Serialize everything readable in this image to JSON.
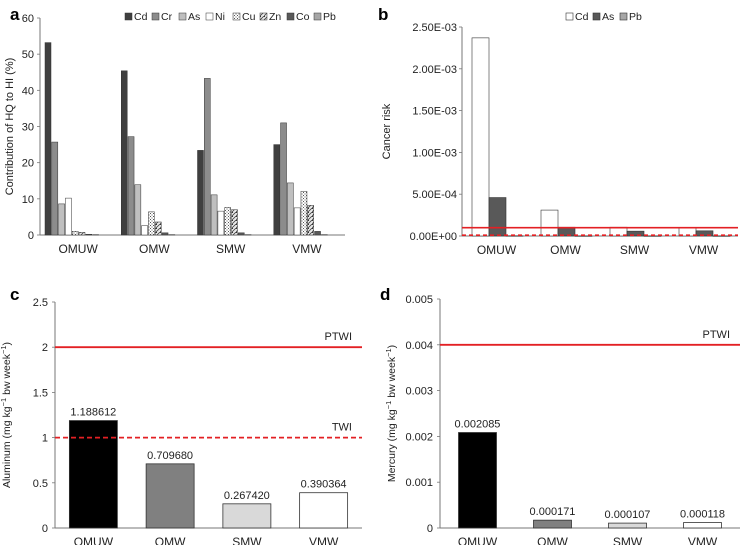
{
  "chart_data": [
    {
      "panel": "a",
      "type": "bar",
      "ylabel": "Contribution of HQ to HI (%)",
      "ylim": [
        0,
        60
      ],
      "yticks": [
        0,
        10,
        20,
        30,
        40,
        50,
        60
      ],
      "categories": [
        "OMUW",
        "OMW",
        "SMW",
        "VMW"
      ],
      "legend_position": "top",
      "series": [
        {
          "name": "Cd",
          "pattern": "cd",
          "values": [
            53.2,
            45.4,
            23.4,
            25.0
          ]
        },
        {
          "name": "Cr",
          "pattern": "cr",
          "values": [
            25.7,
            27.2,
            43.3,
            31.0
          ]
        },
        {
          "name": "As",
          "pattern": "as",
          "values": [
            8.6,
            13.9,
            11.1,
            14.4
          ]
        },
        {
          "name": "Ni",
          "pattern": "ni",
          "values": [
            10.2,
            2.6,
            6.6,
            7.5
          ]
        },
        {
          "name": "Cu",
          "pattern": "cu",
          "values": [
            1.0,
            6.4,
            7.6,
            12.1
          ]
        },
        {
          "name": "Zn",
          "pattern": "zn",
          "values": [
            0.7,
            3.6,
            7.0,
            8.2
          ]
        },
        {
          "name": "Co",
          "pattern": "co",
          "values": [
            0.2,
            0.6,
            0.6,
            1.0
          ]
        },
        {
          "name": "Pb",
          "pattern": "pb",
          "values": [
            0.1,
            0.1,
            0.1,
            0.1
          ]
        }
      ]
    },
    {
      "panel": "b",
      "type": "bar",
      "ylabel": "Cancer risk",
      "ylim": [
        0,
        0.0025
      ],
      "yticks": [
        0,
        0.0005,
        0.001,
        0.0015,
        0.002,
        0.0025
      ],
      "ytick_labels": [
        "0.00E+00",
        "5.00E-04",
        "1.00E-03",
        "1.50E-03",
        "2.00E-03",
        "2.50E-03"
      ],
      "categories": [
        "OMUW",
        "OMW",
        "SMW",
        "VMW"
      ],
      "legend_position": "top",
      "series": [
        {
          "name": "Cd",
          "pattern": "white",
          "values": [
            0.00237,
            0.00031,
            0.000105,
            9.5e-05
          ]
        },
        {
          "name": "As",
          "pattern": "dark",
          "values": [
            0.00046,
            0.000105,
            5.8e-05,
            6.2e-05
          ]
        },
        {
          "name": "Pb",
          "pattern": "light",
          "values": [
            3e-06,
            2e-06,
            2e-06,
            2e-06
          ]
        }
      ],
      "reference_lines": [
        {
          "value": 0.0001,
          "style": "solid",
          "color": "#e32024"
        },
        {
          "value": 1e-05,
          "style": "dashed",
          "color": "#e32024"
        }
      ]
    },
    {
      "panel": "c",
      "type": "bar",
      "ylabel_main": "Aluminum (mg kg",
      "ylabel_sup1": "−1",
      "ylabel_mid": " bw week",
      "ylabel_sup2": "−1",
      "ylabel_end": ")",
      "ylim": [
        0,
        2.5
      ],
      "yticks": [
        0,
        0.5,
        1,
        1.5,
        2,
        2.5
      ],
      "ytick_labels": [
        "0",
        "0.5",
        "1",
        "1.5",
        "2",
        "2.5"
      ],
      "categories": [
        "OMUW",
        "OMW",
        "SMW",
        "VMW"
      ],
      "values": [
        1.188612,
        0.70968,
        0.26742,
        0.390364
      ],
      "value_labels": [
        "1.188612",
        "0.709680",
        "0.267420",
        "0.390364"
      ],
      "bar_colors": [
        "#000000",
        "#808080",
        "#d9d9d9",
        "#ffffff"
      ],
      "reference_lines": [
        {
          "label": "PTWI",
          "value": 2,
          "style": "solid",
          "color": "#e32024"
        },
        {
          "label": "TWI",
          "value": 1,
          "style": "dashed",
          "color": "#e32024"
        }
      ]
    },
    {
      "panel": "d",
      "type": "bar",
      "ylabel_main": "Mercury (mg kg",
      "ylabel_sup1": "−1",
      "ylabel_mid": " bw week",
      "ylabel_sup2": "−1",
      "ylabel_end": ")",
      "ylim": [
        0,
        0.005
      ],
      "yticks": [
        0,
        0.001,
        0.002,
        0.003,
        0.004,
        0.005
      ],
      "ytick_labels": [
        "0",
        "0.001",
        "0.002",
        "0.003",
        "0.004",
        "0.005"
      ],
      "categories": [
        "OMUW",
        "OMW",
        "SMW",
        "VMW"
      ],
      "values": [
        0.002085,
        0.000171,
        0.000107,
        0.000118
      ],
      "value_labels": [
        "0.002085",
        "0.000171",
        "0.000107",
        "0.000118"
      ],
      "bar_colors": [
        "#000000",
        "#808080",
        "#d9d9d9",
        "#ffffff"
      ],
      "reference_lines": [
        {
          "label": "PTWI",
          "value": 0.004,
          "style": "solid",
          "color": "#e32024"
        }
      ]
    }
  ]
}
